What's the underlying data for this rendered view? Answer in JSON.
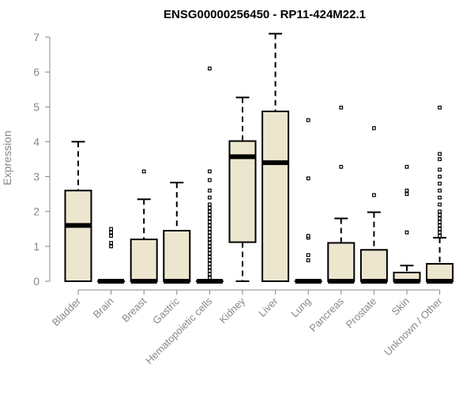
{
  "chart_data": {
    "type": "boxplot",
    "title": "ENSG00000256450 - RP11-424M22.1",
    "xlabel": "",
    "ylabel": "Expression",
    "ylim": [
      0,
      7
    ],
    "yticks": [
      "0",
      "1",
      "2",
      "3",
      "4",
      "5",
      "6",
      "7"
    ],
    "grid": false,
    "box_fill": "#ede6cf",
    "categories": [
      "Bladder",
      "Brain",
      "Breast",
      "Gastric",
      "Hematopoietic cells",
      "Kidney",
      "Liver",
      "Lung",
      "Pancreas",
      "Prostate",
      "Skin",
      "Unknown / Other"
    ],
    "series": [
      {
        "name": "Bladder",
        "whisker_low": 0,
        "q1": 0,
        "median": 1.6,
        "q3": 2.6,
        "whisker_high": 4.0,
        "outliers": []
      },
      {
        "name": "Brain",
        "whisker_low": 0,
        "q1": 0,
        "median": 0,
        "q3": 0,
        "whisker_high": 0,
        "outliers": [
          1.0,
          1.1,
          1.3,
          1.4,
          1.5
        ]
      },
      {
        "name": "Breast",
        "whisker_low": 0,
        "q1": 0,
        "median": 0,
        "q3": 1.2,
        "whisker_high": 2.35,
        "outliers": [
          3.15
        ]
      },
      {
        "name": "Gastric",
        "whisker_low": 0,
        "q1": 0,
        "median": 0,
        "q3": 1.45,
        "whisker_high": 2.83,
        "outliers": []
      },
      {
        "name": "Hematopoietic cells",
        "whisker_low": 0,
        "q1": 0,
        "median": 0,
        "q3": 0,
        "whisker_high": 0,
        "outliers": [
          0.1,
          0.2,
          0.3,
          0.4,
          0.5,
          0.6,
          0.7,
          0.8,
          0.9,
          1.0,
          1.1,
          1.2,
          1.3,
          1.4,
          1.5,
          1.6,
          1.7,
          1.8,
          1.9,
          2.0,
          2.1,
          2.2,
          2.4,
          2.6,
          2.9,
          3.15,
          6.1
        ]
      },
      {
        "name": "Kidney",
        "whisker_low": 0,
        "q1": 1.12,
        "median": 3.57,
        "q3": 4.02,
        "whisker_high": 5.27,
        "outliers": []
      },
      {
        "name": "Liver",
        "whisker_low": 0,
        "q1": 0,
        "median": 3.4,
        "q3": 4.87,
        "whisker_high": 7.1,
        "outliers": []
      },
      {
        "name": "Lung",
        "whisker_low": 0,
        "q1": 0,
        "median": 0,
        "q3": 0,
        "whisker_high": 0,
        "outliers": [
          0.6,
          0.75,
          1.25,
          1.3,
          2.95,
          4.62
        ]
      },
      {
        "name": "Pancreas",
        "whisker_low": 0,
        "q1": 0,
        "median": 0,
        "q3": 1.1,
        "whisker_high": 1.8,
        "outliers": [
          3.28,
          4.98
        ]
      },
      {
        "name": "Prostate",
        "whisker_low": 0,
        "q1": 0,
        "median": 0,
        "q3": 0.9,
        "whisker_high": 1.98,
        "outliers": [
          2.47,
          4.39
        ]
      },
      {
        "name": "Skin",
        "whisker_low": 0,
        "q1": 0,
        "median": 0,
        "q3": 0.25,
        "whisker_high": 0.45,
        "outliers": [
          1.4,
          2.5,
          2.6,
          3.28
        ]
      },
      {
        "name": "Unknown / Other",
        "whisker_low": 0,
        "q1": 0,
        "median": 0,
        "q3": 0.5,
        "whisker_high": 1.25,
        "outliers": [
          1.3,
          1.4,
          1.5,
          1.6,
          1.7,
          1.8,
          1.9,
          2.0,
          2.2,
          2.4,
          2.6,
          2.8,
          3.0,
          3.2,
          3.5,
          3.65,
          4.98
        ]
      }
    ]
  }
}
